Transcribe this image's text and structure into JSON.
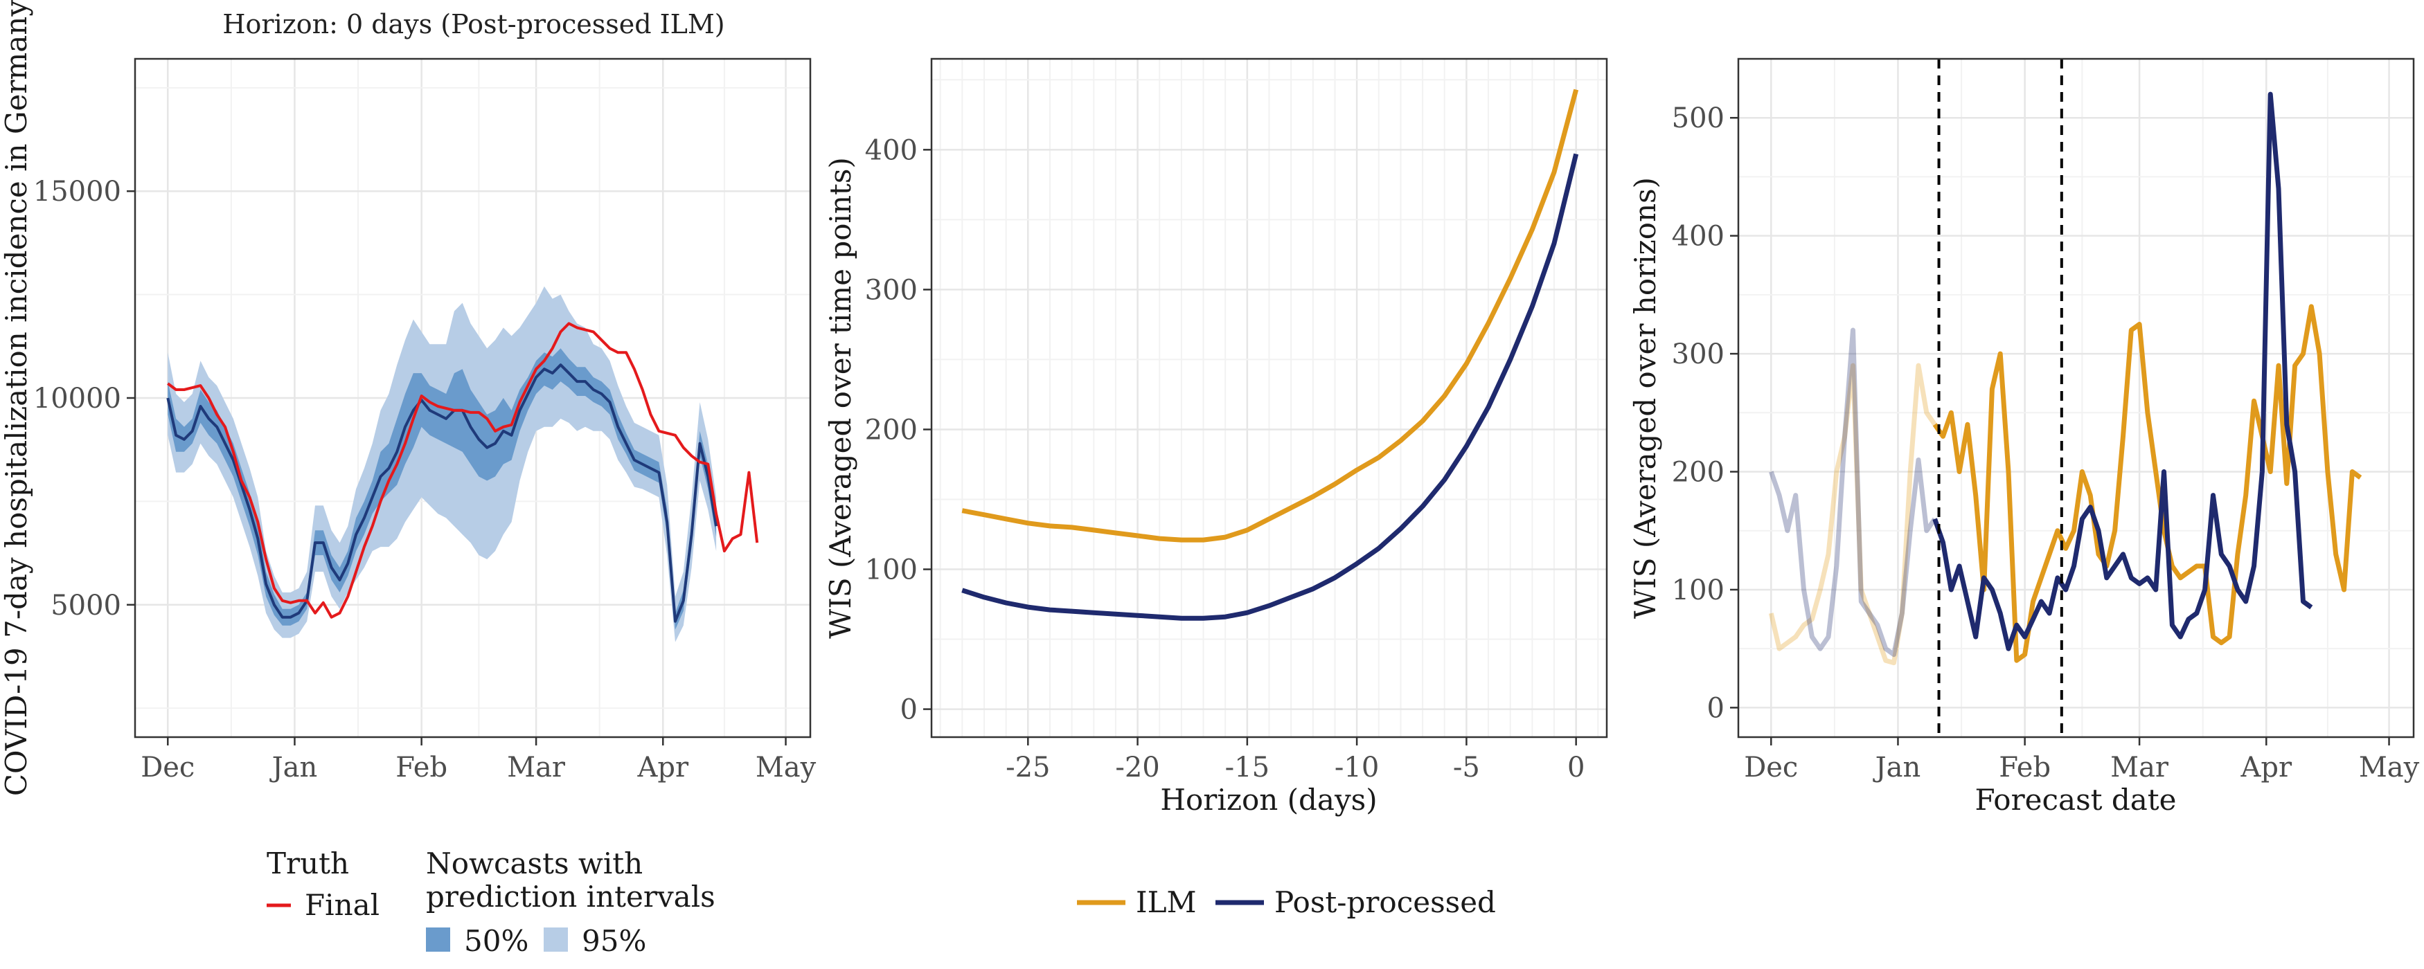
{
  "colors": {
    "truth": "#e41a1c",
    "nowcast_line": "#1f3a7a",
    "band_50": "#6a9bcc",
    "band_95": "#b7cde6",
    "ilm": "#e09a1c",
    "post_processed": "#1f2a6e",
    "grid_major": "#e6e6e6",
    "grid_minor": "#f2f2f2"
  },
  "legend_left": {
    "truth_title": "Truth",
    "truth_final": "Final",
    "nowcast_title_1": "Nowcasts with",
    "nowcast_title_2": "prediction intervals",
    "band_50_label": "50%",
    "band_95_label": "95%"
  },
  "legend_center": {
    "ilm_label": "ILM",
    "post_label": "Post-processed"
  },
  "chart_data": [
    {
      "type": "line",
      "title": "Horizon: 0 days (Post-processed ILM)",
      "xlabel": "",
      "ylabel": "COVID-19 7-day hospitalization incidence in Germany",
      "x_ticks": [
        "Dec",
        "Jan",
        "Feb",
        "Mar",
        "Apr",
        "May"
      ],
      "x_tick_days": [
        0,
        31,
        62,
        90,
        121,
        151
      ],
      "xlim_days": [
        -8,
        157
      ],
      "y_ticks": [
        5000,
        10000,
        15000
      ],
      "ylim": [
        1800,
        18200
      ],
      "x_days": [
        0,
        2,
        4,
        6,
        8,
        10,
        12,
        14,
        16,
        18,
        20,
        22,
        24,
        26,
        28,
        30,
        32,
        34,
        36,
        38,
        40,
        42,
        44,
        46,
        48,
        50,
        52,
        54,
        56,
        58,
        60,
        62,
        64,
        66,
        68,
        70,
        72,
        74,
        76,
        78,
        80,
        82,
        84,
        86,
        88,
        90,
        92,
        94,
        96,
        98,
        100,
        102,
        104,
        106,
        108,
        110,
        112,
        114,
        116,
        118,
        120,
        122,
        124,
        126,
        128,
        130,
        132,
        134,
        136,
        138,
        140,
        142,
        144,
        146,
        148,
        150
      ],
      "series": [
        {
          "name": "Final",
          "values": [
            10350,
            10200,
            10200,
            10250,
            10300,
            10000,
            9600,
            9300,
            8700,
            8000,
            7600,
            7000,
            6100,
            5400,
            5100,
            5050,
            5100,
            5100,
            4800,
            5050,
            4700,
            4800,
            5200,
            5800,
            6400,
            6900,
            7500,
            8000,
            8400,
            8900,
            9500,
            10050,
            9900,
            9800,
            9750,
            9700,
            9700,
            9650,
            9650,
            9500,
            9200,
            9300,
            9350,
            9900,
            10300,
            10700,
            10900,
            11200,
            11600,
            11800,
            11700,
            11650,
            11600,
            11400,
            11200,
            11100,
            11100,
            10700,
            10200,
            9600,
            9200,
            9150,
            9100,
            8800,
            8600,
            8450,
            8400,
            7200,
            6300,
            6600,
            6700,
            8200,
            6500,
            0,
            0,
            0
          ]
        },
        {
          "name": "Nowcast median",
          "values": [
            10000,
            9100,
            9000,
            9200,
            9800,
            9500,
            9300,
            8900,
            8500,
            7900,
            7300,
            6600,
            5500,
            5000,
            4700,
            4700,
            4800,
            5100,
            6500,
            6500,
            5900,
            5600,
            6000,
            6700,
            7100,
            7600,
            8100,
            8300,
            8700,
            9300,
            9700,
            9950,
            9700,
            9600,
            9500,
            9700,
            9700,
            9300,
            9000,
            8800,
            8900,
            9200,
            9100,
            9700,
            10100,
            10500,
            10700,
            10600,
            10800,
            10600,
            10400,
            10400,
            10200,
            10100,
            9900,
            9300,
            8900,
            8500,
            8400,
            8300,
            8200,
            7000,
            4600,
            5100,
            6700,
            8900,
            8100,
            6900,
            0,
            0,
            0,
            0,
            0,
            0,
            0,
            0
          ]
        },
        {
          "name": "50%",
          "lower": [
            9600,
            8700,
            8700,
            8900,
            9400,
            9100,
            8900,
            8500,
            8100,
            7500,
            6900,
            6200,
            5200,
            4750,
            4500,
            4500,
            4600,
            4900,
            6200,
            6200,
            5600,
            5300,
            5700,
            6300,
            6700,
            7200,
            7500,
            7700,
            7900,
            8400,
            8800,
            9300,
            9100,
            9000,
            8900,
            8800,
            8700,
            8400,
            8100,
            8000,
            8100,
            8400,
            8500,
            9200,
            9700,
            10100,
            10300,
            10200,
            10400,
            10250,
            10050,
            10050,
            9900,
            9800,
            9600,
            9000,
            8650,
            8250,
            8150,
            8050,
            7950,
            6700,
            4400,
            4850,
            6400,
            8600,
            7800,
            6650,
            0,
            0,
            0,
            0,
            0,
            0,
            0,
            0
          ],
          "upper": [
            10400,
            9500,
            9300,
            9500,
            10200,
            9900,
            9700,
            9300,
            8900,
            8300,
            7700,
            7000,
            5800,
            5250,
            4900,
            4900,
            5000,
            5300,
            6800,
            6800,
            6200,
            5900,
            6300,
            7100,
            7500,
            8000,
            8700,
            8900,
            9500,
            10100,
            10600,
            10600,
            10300,
            10200,
            10100,
            10600,
            10700,
            10200,
            9900,
            9600,
            9700,
            10000,
            9700,
            10200,
            10500,
            10900,
            11100,
            11000,
            11200,
            10950,
            10750,
            10750,
            10500,
            10400,
            10200,
            9600,
            9150,
            8750,
            8650,
            8550,
            8450,
            7300,
            4800,
            5350,
            7000,
            9200,
            8400,
            7150,
            0,
            0,
            0,
            0,
            0,
            0,
            0,
            0
          ]
        },
        {
          "name": "95%",
          "lower": [
            9100,
            8200,
            8200,
            8400,
            8900,
            8600,
            8400,
            8000,
            7600,
            7000,
            6400,
            5700,
            4800,
            4400,
            4200,
            4200,
            4300,
            4600,
            5800,
            5800,
            5200,
            4900,
            5300,
            5600,
            5900,
            6300,
            6400,
            6400,
            6600,
            7000,
            7300,
            7600,
            7400,
            7200,
            7100,
            6900,
            6700,
            6500,
            6200,
            6100,
            6300,
            6700,
            7000,
            8000,
            8700,
            9200,
            9300,
            9300,
            9500,
            9400,
            9200,
            9300,
            9200,
            9200,
            9000,
            8500,
            8200,
            7850,
            7800,
            7700,
            7600,
            6200,
            4100,
            4500,
            5900,
            8000,
            7300,
            6300,
            0,
            0,
            0,
            0,
            0,
            0,
            0,
            0
          ],
          "upper": [
            11100,
            10100,
            9900,
            10100,
            10900,
            10500,
            10300,
            9900,
            9500,
            8900,
            8300,
            7600,
            6300,
            5700,
            5300,
            5300,
            5400,
            5800,
            7400,
            7400,
            6800,
            6500,
            6900,
            7800,
            8300,
            8900,
            9700,
            10100,
            10800,
            11400,
            11900,
            11600,
            11300,
            11300,
            11300,
            12100,
            12300,
            11800,
            11500,
            11200,
            11400,
            11700,
            11500,
            11700,
            12000,
            12300,
            12700,
            12400,
            12500,
            12100,
            11800,
            11700,
            11300,
            11200,
            10900,
            10300,
            9800,
            9400,
            9300,
            9200,
            9100,
            7900,
            5200,
            5800,
            7600,
            9900,
            9000,
            7600,
            0,
            0,
            0,
            0,
            0,
            0,
            0,
            0
          ]
        }
      ]
    },
    {
      "type": "line",
      "title": "",
      "xlabel": "Horizon (days)",
      "ylabel": "WIS (Averaged over time points)",
      "x_ticks": [
        -25,
        -20,
        -15,
        -10,
        -5,
        0
      ],
      "xlim": [
        -29.4,
        1.4
      ],
      "y_ticks": [
        0,
        100,
        200,
        300,
        400
      ],
      "ylim": [
        -20,
        465
      ],
      "x": [
        -28,
        -27,
        -26,
        -25,
        -24,
        -23,
        -22,
        -21,
        -20,
        -19,
        -18,
        -17,
        -16,
        -15,
        -14,
        -13,
        -12,
        -11,
        -10,
        -9,
        -8,
        -7,
        -6,
        -5,
        -4,
        -3,
        -2,
        -1,
        0
      ],
      "series": [
        {
          "name": "ILM",
          "values": [
            142,
            139,
            136,
            133,
            131,
            130,
            128,
            126,
            124,
            122,
            121,
            121,
            123,
            128,
            136,
            144,
            152,
            161,
            171,
            180,
            192,
            206,
            224,
            247,
            276,
            308,
            343,
            384,
            443
          ]
        },
        {
          "name": "Post-processed",
          "values": [
            85,
            80,
            76,
            73,
            71,
            70,
            69,
            68,
            67,
            66,
            65,
            65,
            66,
            69,
            74,
            80,
            86,
            94,
            104,
            115,
            129,
            145,
            164,
            188,
            216,
            250,
            288,
            333,
            397
          ]
        }
      ]
    },
    {
      "type": "line",
      "title": "",
      "xlabel": "Forecast date",
      "ylabel": "WIS (Averaged over horizons)",
      "x_ticks": [
        "Dec",
        "Jan",
        "Feb",
        "Mar",
        "Apr",
        "May"
      ],
      "x_tick_days": [
        0,
        31,
        62,
        90,
        121,
        151
      ],
      "xlim_days": [
        -8,
        157
      ],
      "y_ticks": [
        0,
        100,
        200,
        300,
        400,
        500
      ],
      "ylim": [
        -25,
        550
      ],
      "vlines_days": [
        41,
        71
      ],
      "x_days": [
        0,
        2,
        4,
        6,
        8,
        10,
        12,
        14,
        16,
        18,
        20,
        22,
        24,
        26,
        28,
        30,
        32,
        34,
        36,
        38,
        40,
        42,
        44,
        46,
        48,
        50,
        52,
        54,
        56,
        58,
        60,
        62,
        64,
        66,
        68,
        70,
        72,
        74,
        76,
        78,
        80,
        82,
        84,
        86,
        88,
        90,
        92,
        94,
        96,
        98,
        100,
        102,
        104,
        106,
        108,
        110,
        112,
        114,
        116,
        118,
        120,
        122,
        124,
        126,
        128,
        130,
        132,
        134,
        136,
        138,
        140,
        142,
        144,
        146,
        148,
        150
      ],
      "series": [
        {
          "name": "ILM",
          "values": [
            80,
            50,
            55,
            60,
            70,
            75,
            100,
            130,
            200,
            230,
            290,
            100,
            80,
            60,
            40,
            38,
            80,
            200,
            290,
            250,
            240,
            230,
            250,
            200,
            240,
            180,
            100,
            270,
            300,
            200,
            40,
            45,
            90,
            110,
            130,
            150,
            135,
            150,
            200,
            180,
            130,
            120,
            150,
            230,
            320,
            325,
            250,
            200,
            150,
            120,
            110,
            115,
            120,
            120,
            60,
            55,
            60,
            130,
            180,
            260,
            230,
            200,
            290,
            190,
            290,
            300,
            340,
            300,
            200,
            130,
            100,
            200,
            195,
            0,
            0,
            0
          ]
        },
        {
          "name": "Post-processed",
          "values": [
            200,
            180,
            150,
            180,
            100,
            60,
            50,
            60,
            120,
            230,
            320,
            90,
            80,
            70,
            50,
            45,
            80,
            150,
            210,
            150,
            160,
            140,
            100,
            120,
            90,
            60,
            110,
            100,
            80,
            50,
            70,
            60,
            75,
            90,
            80,
            110,
            100,
            120,
            160,
            170,
            150,
            110,
            120,
            130,
            110,
            105,
            110,
            100,
            200,
            70,
            60,
            75,
            80,
            100,
            180,
            130,
            120,
            100,
            90,
            120,
            200,
            520,
            440,
            240,
            200,
            90,
            85,
            0,
            0,
            0,
            0,
            0,
            0,
            0,
            0,
            0
          ]
        }
      ]
    }
  ]
}
